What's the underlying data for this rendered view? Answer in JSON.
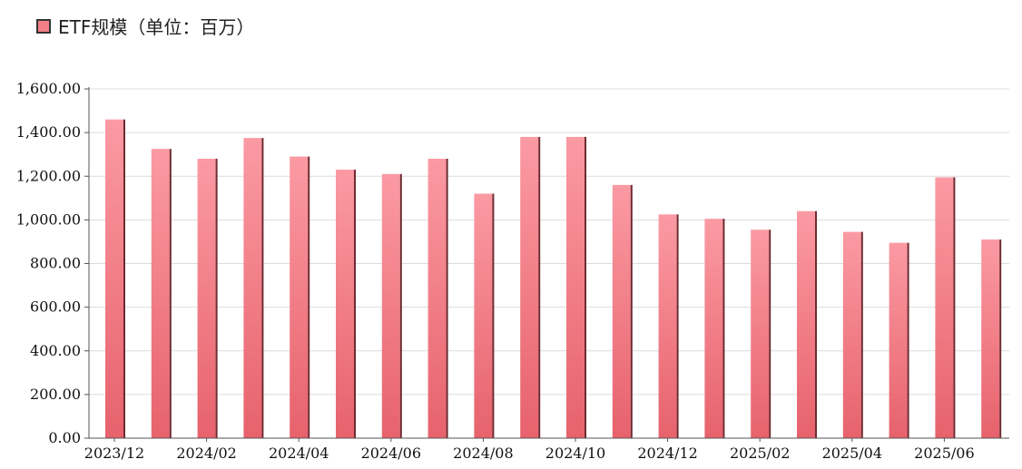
{
  "legend": {
    "label": "ETF规模（单位：百万）",
    "color": "#f07f88"
  },
  "chart_data": {
    "type": "bar",
    "categories": [
      "2023/12",
      "2024/01",
      "2024/02",
      "2024/03",
      "2024/04",
      "2024/05",
      "2024/06",
      "2024/07",
      "2024/08",
      "2024/09",
      "2024/10",
      "2024/11",
      "2024/12",
      "2025/01",
      "2025/02",
      "2025/03",
      "2025/04",
      "2025/05",
      "2025/06",
      "2025/07"
    ],
    "x_tick_labels": [
      "2023/12",
      "2024/02",
      "2024/04",
      "2024/06",
      "2024/08",
      "2024/10",
      "2024/12",
      "2025/02",
      "2025/04",
      "2025/06"
    ],
    "series": [
      {
        "name": "ETF规模（单位：百万）",
        "values": [
          1460,
          1325,
          1280,
          1375,
          1290,
          1230,
          1210,
          1280,
          1120,
          1380,
          1380,
          1160,
          1025,
          1005,
          955,
          1040,
          945,
          895,
          1195,
          910
        ]
      }
    ],
    "ylim": [
      0,
      1600
    ],
    "y_tick_labels": [
      "0.00",
      "200.00",
      "400.00",
      "600.00",
      "800.00",
      "1,000.00",
      "1,200.00",
      "1,400.00",
      "1,600.00"
    ],
    "grid": true,
    "legend_position": "top-left"
  }
}
